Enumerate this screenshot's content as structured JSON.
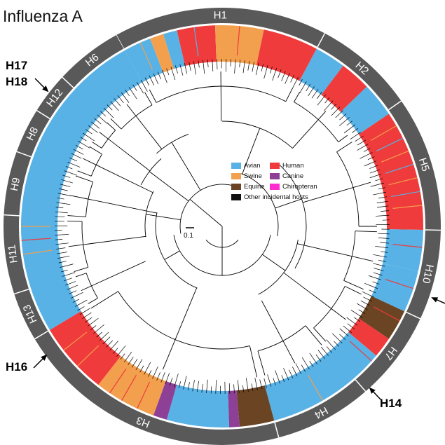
{
  "title": "Influenza A",
  "scale_bar": "0.1",
  "colors": {
    "ring": "#595959",
    "avian": "#58b2e6",
    "human": "#ef3b3b",
    "swine": "#f2a04e",
    "equine": "#6b4423",
    "canine": "#8e3f96",
    "chiropteran": "#ff2ccf",
    "other": "#111111"
  },
  "legend": [
    {
      "label": "Avian",
      "color_key": "avian"
    },
    {
      "label": "Human",
      "color_key": "human"
    },
    {
      "label": "Swine",
      "color_key": "swine"
    },
    {
      "label": "Canine",
      "color_key": "canine"
    },
    {
      "label": "Equine",
      "color_key": "equine"
    },
    {
      "label": "Chiropteran",
      "color_key": "chiropteran"
    },
    {
      "label": "Other incidental hosts",
      "color_key": "other"
    }
  ],
  "subtypes": [
    {
      "label": "H1"
    },
    {
      "label": "H2"
    },
    {
      "label": "H5"
    },
    {
      "label": "H10"
    },
    {
      "label": "H7"
    },
    {
      "label": "H4"
    },
    {
      "label": "H3"
    },
    {
      "label": "H13"
    },
    {
      "label": "H11"
    },
    {
      "label": "H9"
    },
    {
      "label": "H8"
    },
    {
      "label": "H12"
    },
    {
      "label": "H6"
    }
  ],
  "external_labels": {
    "h17": "H17",
    "h18": "H18",
    "h16": "H16",
    "h14": "H14"
  }
}
